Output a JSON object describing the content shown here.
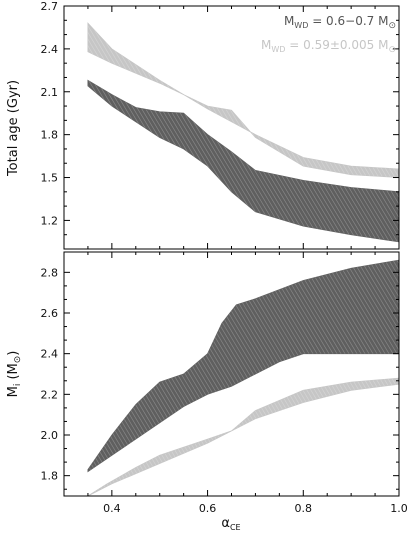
{
  "colors": {
    "dark": "#5f5f5f",
    "light": "#c6c6c6",
    "axis": "#000000"
  },
  "legend": [
    {
      "label": "M",
      "sub": "WD",
      "rest": " = 0.6−0.7 M",
      "sym": "⊙",
      "color": "#555555"
    },
    {
      "label": "M",
      "sub": "WD",
      "rest": " = 0.59±0.005 M",
      "sym": "⊙",
      "color": "#c6c6c6"
    }
  ],
  "chart_data": [
    {
      "type": "area",
      "panel": "top",
      "ylabel": "Total age (Gyr)",
      "xlim": [
        0.3,
        1.0
      ],
      "ylim": [
        1.0,
        2.7
      ],
      "yticks": [
        "1.2",
        "1.5",
        "1.8",
        "2.1",
        "2.4",
        "2.7"
      ],
      "grid": false,
      "legend_position": "top-right",
      "series": [
        {
          "legend_index": 1,
          "color": "#c6c6c6",
          "upper": {
            "x": [
              0.35,
              0.4,
              0.5,
              0.6,
              0.7,
              0.8,
              0.9,
              1.0
            ],
            "y": [
              2.58,
              2.4,
              2.18,
              1.98,
              1.8,
              1.64,
              1.58,
              1.56
            ]
          },
          "lower": {
            "x": [
              0.35,
              0.4,
              0.5,
              0.6,
              0.65,
              0.7,
              0.8,
              0.9,
              1.0
            ],
            "y": [
              2.38,
              2.3,
              2.16,
              2.0,
              1.97,
              1.78,
              1.58,
              1.52,
              1.5
            ]
          }
        },
        {
          "legend_index": 0,
          "color": "#5f5f5f",
          "upper": {
            "x": [
              0.35,
              0.4,
              0.45,
              0.5,
              0.55,
              0.6,
              0.65,
              0.7,
              0.8,
              0.9,
              1.0
            ],
            "y": [
              2.18,
              2.08,
              1.99,
              1.96,
              1.95,
              1.8,
              1.68,
              1.55,
              1.48,
              1.43,
              1.4
            ]
          },
          "lower": {
            "x": [
              0.35,
              0.4,
              0.5,
              0.55,
              0.6,
              0.65,
              0.7,
              0.8,
              0.9,
              1.0
            ],
            "y": [
              2.14,
              2.0,
              1.78,
              1.7,
              1.58,
              1.4,
              1.26,
              1.16,
              1.1,
              1.05
            ]
          }
        }
      ]
    },
    {
      "type": "area",
      "panel": "bottom",
      "xlabel": "α",
      "xlabel_sub": "CE",
      "ylabel": "M",
      "ylabel_sub": "i",
      "ylabel_rest": " (M",
      "ylabel_sym": "⊙",
      "ylabel_end": ")",
      "xlim": [
        0.3,
        1.0
      ],
      "ylim": [
        1.7,
        2.9
      ],
      "xticks": [
        "0.4",
        "0.6",
        "0.8",
        "1.0"
      ],
      "yticks": [
        "1.8",
        "2.0",
        "2.2",
        "2.4",
        "2.6",
        "2.8"
      ],
      "grid": false,
      "series": [
        {
          "legend_index": 1,
          "color": "#c6c6c6",
          "upper": {
            "x": [
              0.39,
              0.45,
              0.5,
              0.6,
              0.65,
              0.7,
              0.8,
              0.9,
              1.0
            ],
            "y": [
              1.76,
              1.84,
              1.9,
              1.98,
              2.02,
              2.12,
              2.22,
              2.26,
              2.28
            ]
          },
          "lower": {
            "x": [
              0.35,
              0.4,
              0.5,
              0.6,
              0.7,
              0.8,
              0.9,
              1.0
            ],
            "y": [
              1.7,
              1.76,
              1.86,
              1.96,
              2.08,
              2.16,
              2.22,
              2.25
            ]
          }
        },
        {
          "legend_index": 0,
          "color": "#5f5f5f",
          "upper": {
            "x": [
              0.35,
              0.4,
              0.45,
              0.5,
              0.55,
              0.6,
              0.63,
              0.66,
              0.7,
              0.8,
              0.9,
              1.0
            ],
            "y": [
              1.83,
              2.0,
              2.15,
              2.26,
              2.3,
              2.4,
              2.55,
              2.64,
              2.67,
              2.76,
              2.82,
              2.86
            ]
          },
          "lower": {
            "x": [
              0.35,
              0.4,
              0.45,
              0.5,
              0.55,
              0.6,
              0.65,
              0.7,
              0.75,
              0.8,
              0.9,
              1.0
            ],
            "y": [
              1.82,
              1.9,
              1.98,
              2.06,
              2.14,
              2.2,
              2.24,
              2.3,
              2.36,
              2.4,
              2.4,
              2.4
            ]
          }
        }
      ]
    }
  ]
}
